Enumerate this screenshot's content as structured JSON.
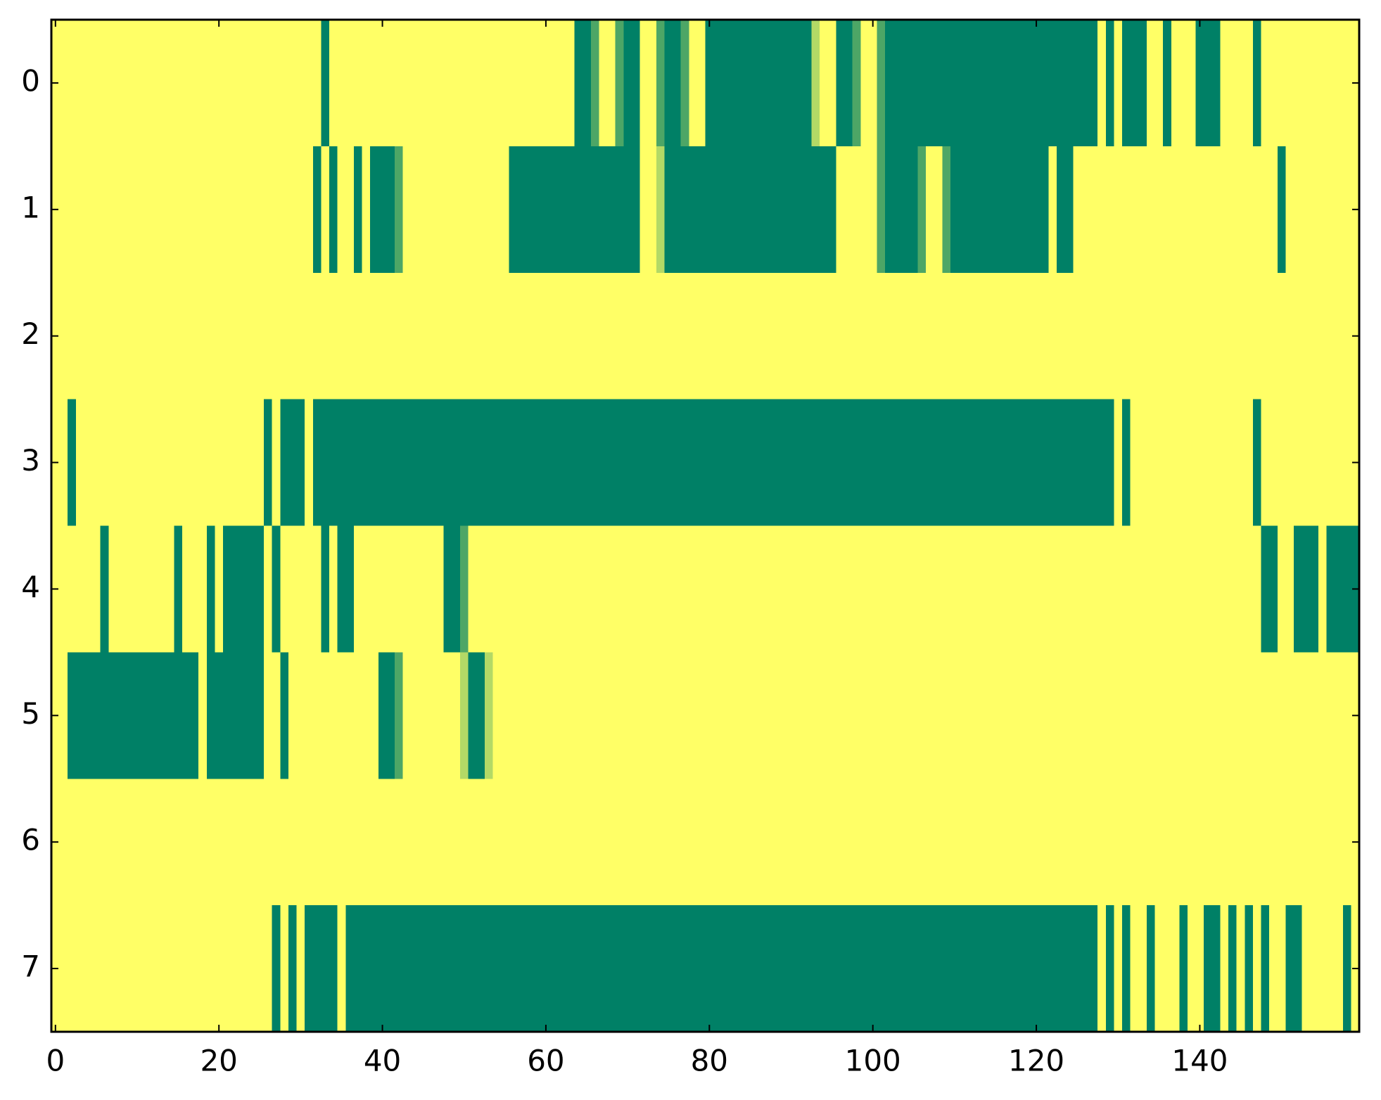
{
  "chart_data": {
    "type": "heatmap",
    "colormap": "summer",
    "clim": [
      0,
      1
    ],
    "xlim": [
      -0.5,
      159.5
    ],
    "ylim": [
      7.5,
      -0.5
    ],
    "xticks": [
      0,
      20,
      40,
      60,
      80,
      100,
      120,
      140
    ],
    "yticks": [
      0,
      1,
      2,
      3,
      4,
      5,
      6,
      7
    ],
    "values": [
      [
        1,
        1,
        1,
        1,
        1,
        1,
        1,
        1,
        1,
        1,
        1,
        1,
        1,
        1,
        1,
        1,
        1,
        1,
        1,
        1,
        1,
        1,
        1,
        1,
        1,
        1,
        1,
        1,
        1,
        1,
        1,
        1,
        1,
        0,
        1,
        1,
        1,
        1,
        1,
        1,
        1,
        1,
        1,
        1,
        1,
        1,
        1,
        1,
        1,
        1,
        1,
        1,
        1,
        1,
        1,
        1,
        1,
        1,
        1,
        1,
        1,
        1,
        1,
        1,
        0,
        0,
        0.3,
        1,
        1,
        0.3,
        0,
        0,
        1,
        1,
        0.3,
        0,
        0,
        0.3,
        1,
        1,
        0,
        0,
        0,
        0,
        0,
        0,
        0,
        0,
        0,
        0,
        0,
        0,
        0,
        0.7,
        1,
        1,
        0,
        0,
        0.3,
        1,
        1,
        0.3,
        0,
        0,
        0,
        0,
        0,
        0,
        0,
        0,
        0,
        0,
        0,
        0,
        0,
        0,
        0,
        0,
        0,
        0,
        0,
        0,
        0,
        0,
        0,
        0,
        0,
        0,
        1,
        0,
        1,
        0,
        0,
        0,
        1,
        1,
        0,
        1,
        1,
        1,
        0,
        0,
        0,
        1,
        1,
        1,
        1,
        0,
        1,
        1,
        1,
        1,
        1,
        1,
        1,
        1,
        1,
        1,
        1,
        1
      ],
      [
        1,
        1,
        1,
        1,
        1,
        1,
        1,
        1,
        1,
        1,
        1,
        1,
        1,
        1,
        1,
        1,
        1,
        1,
        1,
        1,
        1,
        1,
        1,
        1,
        1,
        1,
        1,
        1,
        1,
        1,
        1,
        1,
        0,
        1,
        0,
        1,
        1,
        0,
        1,
        0,
        0,
        0,
        0.3,
        1,
        1,
        1,
        1,
        1,
        1,
        1,
        1,
        1,
        1,
        1,
        1,
        1,
        0,
        0,
        0,
        0,
        0,
        0,
        0,
        0,
        0,
        0,
        0,
        0,
        0,
        0,
        0,
        0,
        1,
        1,
        0.7,
        0,
        0,
        0,
        0,
        0,
        0,
        0,
        0,
        0,
        0,
        0,
        0,
        0,
        0,
        0,
        0,
        0,
        0,
        0,
        0,
        0,
        1,
        1,
        1,
        1,
        1,
        0.3,
        0,
        0,
        0,
        0,
        0.3,
        1,
        1,
        0.3,
        0,
        0,
        0,
        0,
        0,
        0,
        0,
        0,
        0,
        0,
        0,
        0,
        1,
        0,
        0,
        1,
        1,
        1,
        1,
        1,
        1,
        1,
        1,
        1,
        1,
        1,
        1,
        1,
        1,
        1,
        1,
        1,
        1,
        1,
        1,
        1,
        1,
        1,
        1,
        1,
        0,
        1,
        1,
        1,
        1,
        1,
        1,
        1,
        1,
        1
      ],
      [
        1,
        1,
        1,
        1,
        1,
        1,
        1,
        1,
        1,
        1,
        1,
        1,
        1,
        1,
        1,
        1,
        1,
        1,
        1,
        1,
        1,
        1,
        1,
        1,
        1,
        1,
        1,
        1,
        1,
        1,
        1,
        1,
        1,
        1,
        1,
        1,
        1,
        1,
        1,
        1,
        1,
        1,
        1,
        1,
        1,
        1,
        1,
        1,
        1,
        1,
        1,
        1,
        1,
        1,
        1,
        1,
        1,
        1,
        1,
        1,
        1,
        1,
        1,
        1,
        1,
        1,
        1,
        1,
        1,
        1,
        1,
        1,
        1,
        1,
        1,
        1,
        1,
        1,
        1,
        1,
        1,
        1,
        1,
        1,
        1,
        1,
        1,
        1,
        1,
        1,
        1,
        1,
        1,
        1,
        1,
        1,
        1,
        1,
        1,
        1,
        1,
        1,
        1,
        1,
        1,
        1,
        1,
        1,
        1,
        1,
        1,
        1,
        1,
        1,
        1,
        1,
        1,
        1,
        1,
        1,
        1,
        1,
        1,
        1,
        1,
        1,
        1,
        1,
        1,
        1,
        1,
        1,
        1,
        1,
        1,
        1,
        1,
        1,
        1,
        1,
        1,
        1,
        1,
        1,
        1,
        1,
        1,
        1,
        1,
        1,
        1,
        1,
        1,
        1,
        1,
        1,
        1,
        1,
        1,
        1
      ],
      [
        1,
        1,
        0,
        1,
        1,
        1,
        1,
        1,
        1,
        1,
        1,
        1,
        1,
        1,
        1,
        1,
        1,
        1,
        1,
        1,
        1,
        1,
        1,
        1,
        1,
        1,
        0,
        1,
        0,
        0,
        0,
        1,
        0,
        0,
        0,
        0,
        0,
        0,
        0,
        0,
        0,
        0,
        0,
        0,
        0,
        0,
        0,
        0,
        0,
        0,
        0,
        0,
        0,
        0,
        0,
        0,
        0,
        0,
        0,
        0,
        0,
        0,
        0,
        0,
        0,
        0,
        0,
        0,
        0,
        0,
        0,
        0,
        0,
        0,
        0,
        0,
        0,
        0,
        0,
        0,
        0,
        0,
        0,
        0,
        0,
        0,
        0,
        0,
        0,
        0,
        0,
        0,
        0,
        0,
        0,
        0,
        0,
        0,
        0,
        0,
        0,
        0,
        0,
        0,
        0,
        0,
        0,
        0,
        0,
        0,
        0,
        0,
        0,
        0,
        0,
        0,
        0,
        0,
        0,
        0,
        0,
        0,
        0,
        0,
        0,
        0,
        0,
        0,
        0,
        0,
        1,
        0,
        1,
        1,
        1,
        1,
        1,
        1,
        1,
        1,
        1,
        1,
        1,
        1,
        1,
        1,
        1,
        0,
        1,
        1,
        1,
        1,
        1,
        1,
        1,
        1,
        1,
        1,
        1,
        1
      ],
      [
        1,
        1,
        1,
        1,
        1,
        1,
        0,
        1,
        1,
        1,
        1,
        1,
        1,
        1,
        1,
        0,
        1,
        1,
        1,
        0,
        1,
        0,
        0,
        0,
        0,
        0,
        1,
        0,
        1,
        1,
        1,
        1,
        1,
        0,
        1,
        0,
        0,
        1,
        1,
        1,
        1,
        1,
        1,
        1,
        1,
        1,
        1,
        1,
        0,
        0,
        0.3,
        1,
        1,
        1,
        1,
        1,
        1,
        1,
        1,
        1,
        1,
        1,
        1,
        1,
        1,
        1,
        1,
        1,
        1,
        1,
        1,
        1,
        1,
        1,
        1,
        1,
        1,
        1,
        1,
        1,
        1,
        1,
        1,
        1,
        1,
        1,
        1,
        1,
        1,
        1,
        1,
        1,
        1,
        1,
        1,
        1,
        1,
        1,
        1,
        1,
        1,
        1,
        1,
        1,
        1,
        1,
        1,
        1,
        1,
        1,
        1,
        1,
        1,
        1,
        1,
        1,
        1,
        1,
        1,
        1,
        1,
        1,
        1,
        1,
        1,
        1,
        1,
        1,
        1,
        1,
        1,
        1,
        1,
        1,
        1,
        1,
        1,
        1,
        1,
        1,
        1,
        1,
        1,
        1,
        1,
        1,
        1,
        1,
        0,
        0,
        1,
        1,
        0,
        0,
        0,
        1,
        0,
        0,
        0,
        0
      ],
      [
        1,
        1,
        0,
        0,
        0,
        0,
        0,
        0,
        0,
        0,
        0,
        0,
        0,
        0,
        0,
        0,
        0,
        0,
        1,
        0,
        0,
        0,
        0,
        0,
        0,
        0,
        1,
        1,
        0,
        1,
        1,
        1,
        1,
        1,
        1,
        1,
        1,
        1,
        1,
        1,
        0,
        0,
        0.3,
        1,
        1,
        1,
        1,
        1,
        1,
        1,
        0.7,
        0,
        0,
        0.7,
        1,
        1,
        1,
        1,
        1,
        1,
        1,
        1,
        1,
        1,
        1,
        1,
        1,
        1,
        1,
        1,
        1,
        1,
        1,
        1,
        1,
        1,
        1,
        1,
        1,
        1,
        1,
        1,
        1,
        1,
        1,
        1,
        1,
        1,
        1,
        1,
        1,
        1,
        1,
        1,
        1,
        1,
        1,
        1,
        1,
        1,
        1,
        1,
        1,
        1,
        1,
        1,
        1,
        1,
        1,
        1,
        1,
        1,
        1,
        1,
        1,
        1,
        1,
        1,
        1,
        1,
        1,
        1,
        1,
        1,
        1,
        1,
        1,
        1,
        1,
        1,
        1,
        1,
        1,
        1,
        1,
        1,
        1,
        1,
        1,
        1,
        1,
        1,
        1,
        1,
        1,
        1,
        1,
        1,
        1,
        1,
        1,
        1,
        1,
        1,
        1,
        1,
        1,
        1,
        1,
        1
      ],
      [
        1,
        1,
        1,
        1,
        1,
        1,
        1,
        1,
        1,
        1,
        1,
        1,
        1,
        1,
        1,
        1,
        1,
        1,
        1,
        1,
        1,
        1,
        1,
        1,
        1,
        1,
        1,
        1,
        1,
        1,
        1,
        1,
        1,
        1,
        1,
        1,
        1,
        1,
        1,
        1,
        1,
        1,
        1,
        1,
        1,
        1,
        1,
        1,
        1,
        1,
        1,
        1,
        1,
        1,
        1,
        1,
        1,
        1,
        1,
        1,
        1,
        1,
        1,
        1,
        1,
        1,
        1,
        1,
        1,
        1,
        1,
        1,
        1,
        1,
        1,
        1,
        1,
        1,
        1,
        1,
        1,
        1,
        1,
        1,
        1,
        1,
        1,
        1,
        1,
        1,
        1,
        1,
        1,
        1,
        1,
        1,
        1,
        1,
        1,
        1,
        1,
        1,
        1,
        1,
        1,
        1,
        1,
        1,
        1,
        1,
        1,
        1,
        1,
        1,
        1,
        1,
        1,
        1,
        1,
        1,
        1,
        1,
        1,
        1,
        1,
        1,
        1,
        1,
        1,
        1,
        1,
        1,
        1,
        1,
        1,
        1,
        1,
        1,
        1,
        1,
        1,
        1,
        1,
        1,
        1,
        1,
        1,
        1,
        1,
        1,
        1,
        1,
        1,
        1,
        1,
        1,
        1,
        1,
        1,
        1
      ],
      [
        1,
        1,
        1,
        1,
        1,
        1,
        1,
        1,
        1,
        1,
        1,
        1,
        1,
        1,
        1,
        1,
        1,
        1,
        1,
        1,
        1,
        1,
        1,
        1,
        1,
        1,
        1,
        0,
        1,
        0,
        1,
        0,
        0,
        0,
        0,
        1,
        0,
        0,
        0,
        0,
        0,
        0,
        0,
        0,
        0,
        0,
        0,
        0,
        0,
        0,
        0,
        0,
        0,
        0,
        0,
        0,
        0,
        0,
        0,
        0,
        0,
        0,
        0,
        0,
        0,
        0,
        0,
        0,
        0,
        0,
        0,
        0,
        0,
        0,
        0,
        0,
        0,
        0,
        0,
        0,
        0,
        0,
        0,
        0,
        0,
        0,
        0,
        0,
        0,
        0,
        0,
        0,
        0,
        0,
        0,
        0,
        0,
        0,
        0,
        0,
        0,
        0,
        0,
        0,
        0,
        0,
        0,
        0,
        0,
        0,
        0,
        0,
        0,
        0,
        0,
        0,
        0,
        0,
        0,
        0,
        0,
        0,
        0,
        0,
        0,
        0,
        0,
        0,
        1,
        0,
        1,
        0,
        1,
        1,
        0,
        1,
        1,
        1,
        0,
        1,
        1,
        0,
        0,
        1,
        0,
        1,
        0,
        1,
        0,
        1,
        1,
        0,
        0,
        1,
        1,
        1,
        1,
        1,
        0,
        1
      ]
    ]
  }
}
